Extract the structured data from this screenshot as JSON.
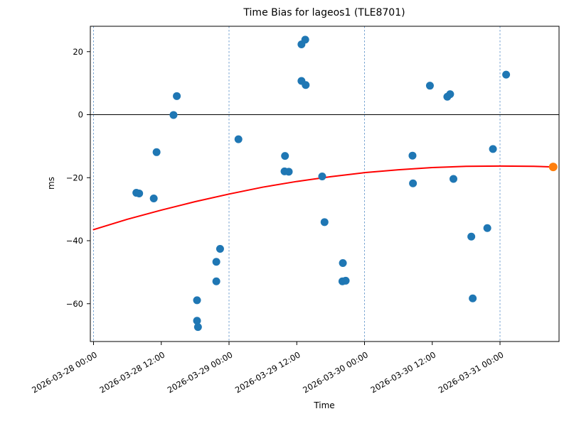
{
  "colors": {
    "scatter": "#1f77b4",
    "latest_point": "#ff7f0e",
    "fit_line": "#ff0000",
    "grid": "#6699cc",
    "zero_line": "#000000",
    "spine": "#000000",
    "text": "#000000"
  },
  "chart_data": {
    "type": "scatter",
    "title": "Time Bias for lageos1 (TLE8701)",
    "xlabel": "Time",
    "ylabel": "ms",
    "x_tick_labels": [
      "2026-03-28 00:00",
      "2026-03-28 12:00",
      "2026-03-29 00:00",
      "2026-03-29 12:00",
      "2026-03-30 00:00",
      "2026-03-30 12:00",
      "2026-03-31 00:00"
    ],
    "y_tick_labels": [
      "20",
      "0",
      "−20",
      "−40",
      "−60"
    ],
    "y_tick_values": [
      20,
      0,
      -20,
      -40,
      -60
    ],
    "ylim": [
      -72.0,
      28.2
    ],
    "xlim": [
      "2026-03-27 23:25",
      "2026-03-31 10:30"
    ],
    "grid": "vertical dashed lines at 00:00 ticks only",
    "zero_line_at_ms": 0,
    "series": [
      {
        "name": "time-bias-measurements",
        "marker": "circle",
        "color": "#1f77b4",
        "points": [
          {
            "time": "2026-03-28 07:35",
            "ms": -24.8
          },
          {
            "time": "2026-03-28 08:05",
            "ms": -25.0
          },
          {
            "time": "2026-03-28 10:40",
            "ms": -26.6
          },
          {
            "time": "2026-03-28 11:10",
            "ms": -11.9
          },
          {
            "time": "2026-03-28 14:10",
            "ms": -0.1
          },
          {
            "time": "2026-03-28 14:45",
            "ms": 5.9
          },
          {
            "time": "2026-03-28 18:20",
            "ms": -58.9
          },
          {
            "time": "2026-03-28 18:20",
            "ms": -65.4
          },
          {
            "time": "2026-03-28 18:30",
            "ms": -67.4
          },
          {
            "time": "2026-03-28 21:45",
            "ms": -52.9
          },
          {
            "time": "2026-03-28 21:45",
            "ms": -46.7
          },
          {
            "time": "2026-03-28 22:25",
            "ms": -42.6
          },
          {
            "time": "2026-03-29 01:40",
            "ms": -7.8
          },
          {
            "time": "2026-03-29 09:55",
            "ms": -13.1
          },
          {
            "time": "2026-03-29 09:50",
            "ms": -18.0
          },
          {
            "time": "2026-03-29 10:35",
            "ms": -18.1
          },
          {
            "time": "2026-03-29 12:50",
            "ms": 22.3
          },
          {
            "time": "2026-03-29 13:30",
            "ms": 23.8
          },
          {
            "time": "2026-03-29 12:50",
            "ms": 10.7
          },
          {
            "time": "2026-03-29 13:35",
            "ms": 9.4
          },
          {
            "time": "2026-03-29 16:30",
            "ms": -19.6
          },
          {
            "time": "2026-03-29 16:55",
            "ms": -34.1
          },
          {
            "time": "2026-03-29 20:10",
            "ms": -47.1
          },
          {
            "time": "2026-03-29 20:05",
            "ms": -52.9
          },
          {
            "time": "2026-03-29 20:40",
            "ms": -52.7
          },
          {
            "time": "2026-03-30 08:30",
            "ms": -13.0
          },
          {
            "time": "2026-03-30 08:35",
            "ms": -21.8
          },
          {
            "time": "2026-03-30 11:35",
            "ms": 9.2
          },
          {
            "time": "2026-03-30 14:40",
            "ms": 5.7
          },
          {
            "time": "2026-03-30 15:10",
            "ms": 6.5
          },
          {
            "time": "2026-03-30 15:45",
            "ms": -20.4
          },
          {
            "time": "2026-03-30 18:55",
            "ms": -38.7
          },
          {
            "time": "2026-03-30 19:10",
            "ms": -58.3
          },
          {
            "time": "2026-03-30 21:45",
            "ms": -36.0
          },
          {
            "time": "2026-03-30 22:45",
            "ms": -10.9
          },
          {
            "time": "2026-03-31 01:05",
            "ms": 12.7
          }
        ]
      },
      {
        "name": "latest-point",
        "marker": "circle",
        "color": "#ff7f0e",
        "points": [
          {
            "time": "2026-03-31 09:25",
            "ms": -16.6
          }
        ]
      },
      {
        "name": "polynomial-fit",
        "type": "line",
        "color": "#ff0000",
        "points": [
          {
            "time": "2026-03-28 00:00",
            "ms": -36.5
          },
          {
            "time": "2026-03-28 06:00",
            "ms": -33.2
          },
          {
            "time": "2026-03-28 12:00",
            "ms": -30.3
          },
          {
            "time": "2026-03-28 18:00",
            "ms": -27.6
          },
          {
            "time": "2026-03-29 00:00",
            "ms": -25.2
          },
          {
            "time": "2026-03-29 06:00",
            "ms": -23.0
          },
          {
            "time": "2026-03-29 12:00",
            "ms": -21.2
          },
          {
            "time": "2026-03-29 18:00",
            "ms": -19.7
          },
          {
            "time": "2026-03-30 00:00",
            "ms": -18.4
          },
          {
            "time": "2026-03-30 06:00",
            "ms": -17.5
          },
          {
            "time": "2026-03-30 12:00",
            "ms": -16.8
          },
          {
            "time": "2026-03-30 18:00",
            "ms": -16.4
          },
          {
            "time": "2026-03-31 00:00",
            "ms": -16.3
          },
          {
            "time": "2026-03-31 06:00",
            "ms": -16.4
          },
          {
            "time": "2026-03-31 09:25",
            "ms": -16.6
          }
        ]
      }
    ]
  }
}
